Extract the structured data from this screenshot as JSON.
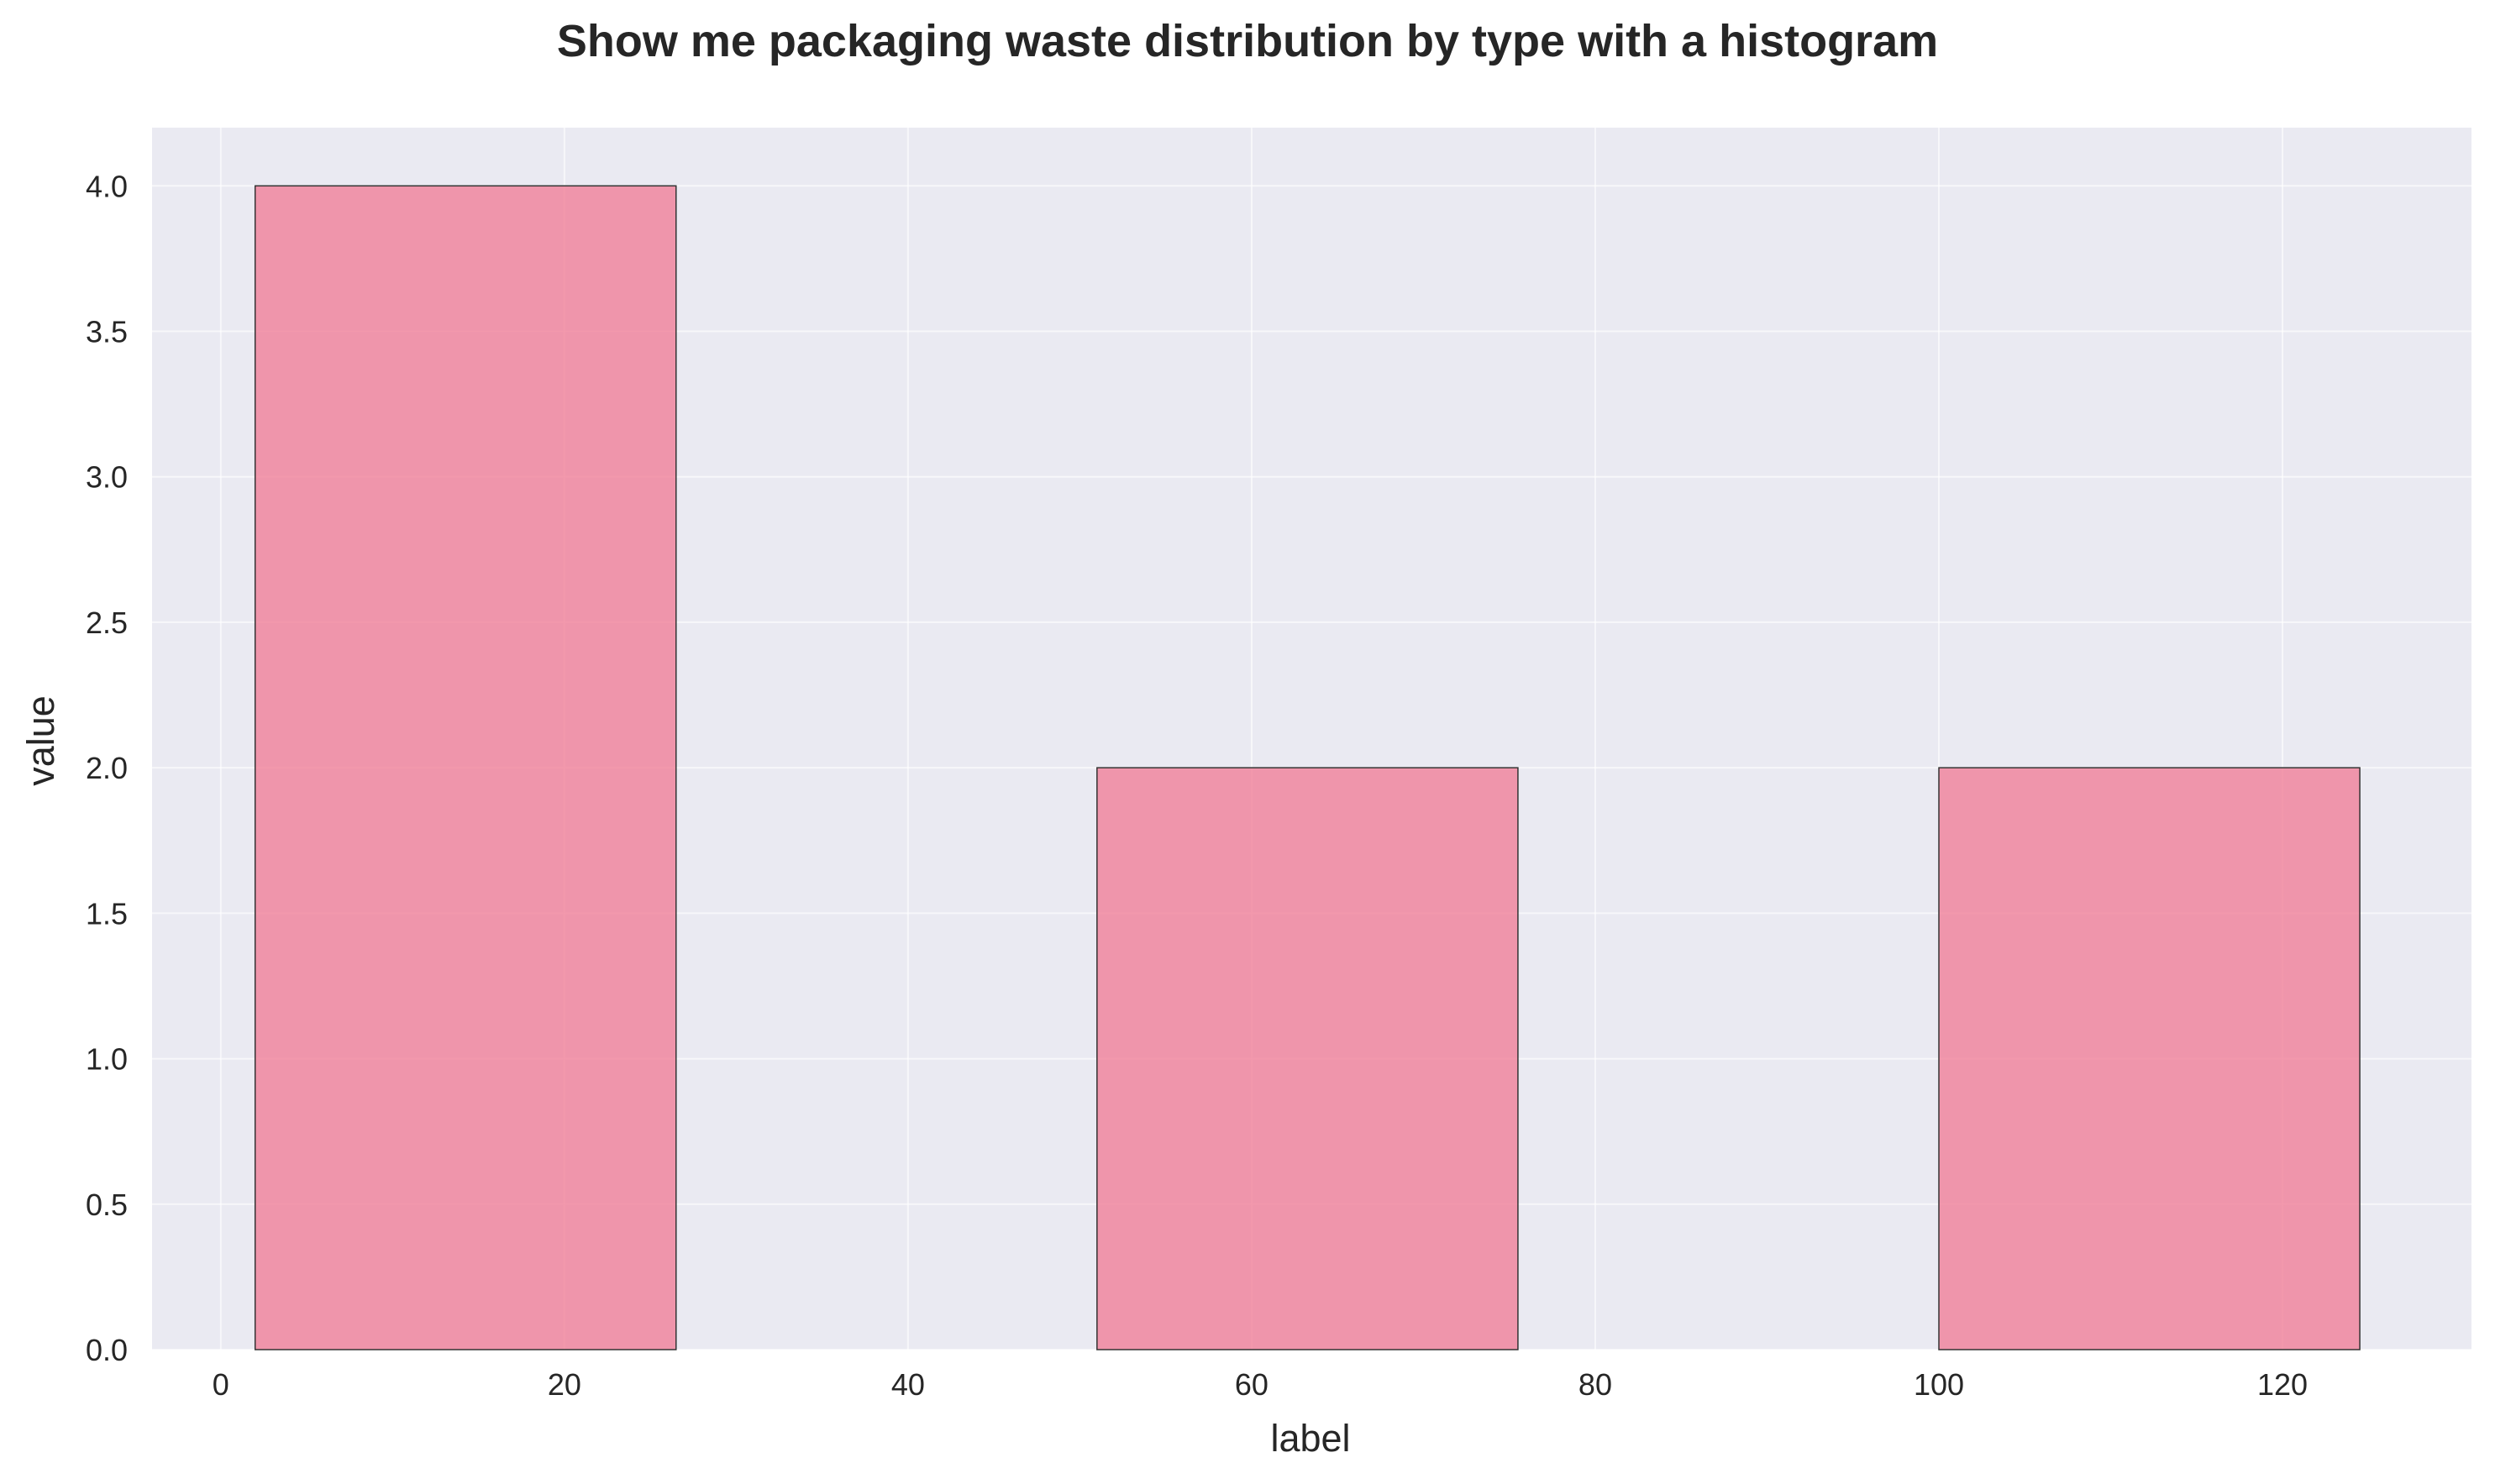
{
  "chart_data": {
    "type": "bar",
    "title": "Show me packaging waste distribution by type with a histogram",
    "xlabel": "label",
    "ylabel": "value",
    "bins": [
      {
        "x_start": 2,
        "x_end": 26.5,
        "value": 4
      },
      {
        "x_start": 51,
        "x_end": 75.5,
        "value": 2
      },
      {
        "x_start": 100,
        "x_end": 124.5,
        "value": 2
      }
    ],
    "xlim": [
      -4,
      131
    ],
    "ylim": [
      0,
      4.2
    ],
    "x_ticks": [
      0,
      20,
      40,
      60,
      80,
      100,
      120
    ],
    "x_tick_labels": [
      "0",
      "20",
      "40",
      "60",
      "80",
      "100",
      "120"
    ],
    "y_ticks": [
      0,
      0.5,
      1,
      1.5,
      2,
      2.5,
      3,
      3.5,
      4
    ],
    "y_tick_labels": [
      "0.0",
      "0.5",
      "1.0",
      "1.5",
      "2.0",
      "2.5",
      "3.0",
      "3.5",
      "4.0"
    ],
    "grid": true,
    "legend": false,
    "colors": {
      "bar_fill": "#f07f98",
      "bar_edge": "#333333",
      "plot_background": "#eaeaf2",
      "grid": "#ffffff"
    }
  }
}
